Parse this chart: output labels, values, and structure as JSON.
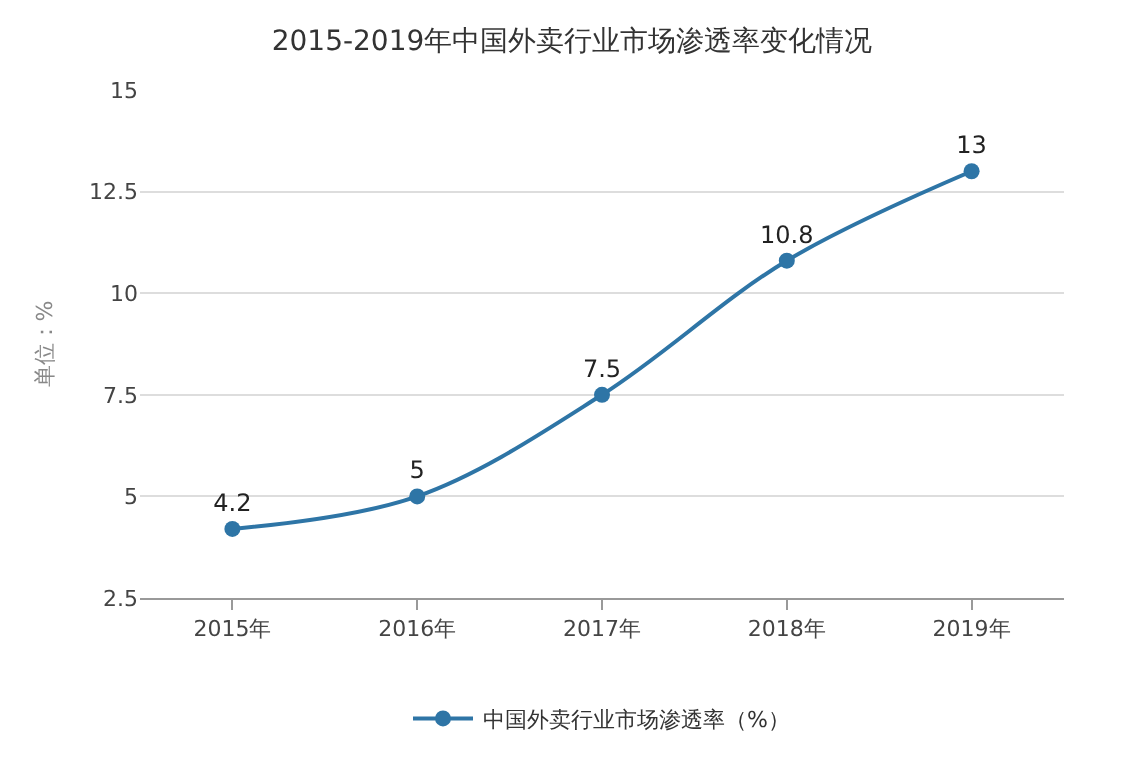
{
  "chart_data": {
    "type": "line",
    "title": "2015-2019年中国外卖行业市场渗透率变化情况",
    "ylabel": "单位：%",
    "categories": [
      "2015年",
      "2016年",
      "2017年",
      "2018年",
      "2019年"
    ],
    "series": [
      {
        "name": "中国外卖行业市场渗透率（%）",
        "color": "#2e75a6",
        "values": [
          4.2,
          5,
          7.5,
          10.8,
          13
        ]
      }
    ],
    "ylim": [
      2.5,
      15
    ],
    "yticks": [
      2.5,
      5,
      7.5,
      10,
      12.5,
      15
    ],
    "grid": "y",
    "legend": "bottom",
    "marker": "circle",
    "line_style": "solid",
    "data_labels": true
  }
}
